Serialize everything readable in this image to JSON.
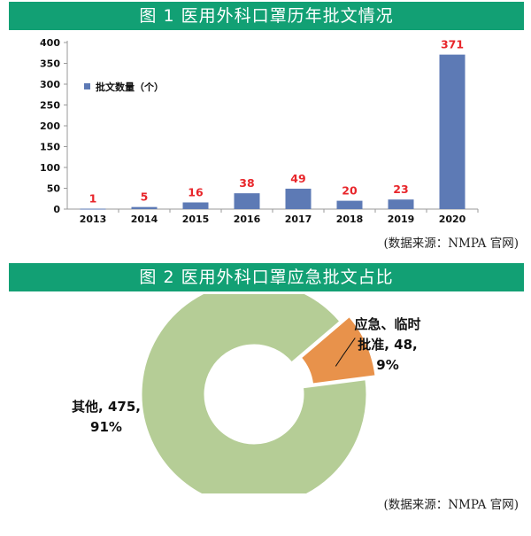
{
  "chart1": {
    "title": "图 1   医用外科口罩历年批文情况",
    "source": "(数据来源：NMPA 官网)",
    "chart_data": {
      "type": "bar",
      "title": "图 1   医用外科口罩历年批文情况",
      "categories": [
        "2013",
        "2014",
        "2015",
        "2016",
        "2017",
        "2018",
        "2019",
        "2020"
      ],
      "series": [
        {
          "name": "批文数量（个）",
          "values": [
            1,
            5,
            16,
            38,
            49,
            20,
            23,
            371
          ]
        }
      ],
      "ylim": [
        0,
        400
      ],
      "yticks": [
        0,
        50,
        100,
        150,
        200,
        250,
        300,
        350,
        400
      ],
      "xlabel": "",
      "ylabel": "",
      "grid": false,
      "legend": "inside top-left",
      "colors": {
        "bar": "#5d7ab5",
        "data_label": "#e8262b"
      }
    }
  },
  "chart2": {
    "title": "图 2   医用外科口罩应急批文占比",
    "source": "(数据来源：NMPA 官网)",
    "chart_data": {
      "type": "pie",
      "style": "donut, emergency slice exploded",
      "slices": [
        {
          "label_lines": [
            "其他, 475,",
            "91%"
          ],
          "value": 475,
          "percent": 91,
          "color": "#b5cd96"
        },
        {
          "label_lines": [
            "应急、临时",
            "批准, 48,",
            "9%"
          ],
          "value": 48,
          "percent": 9,
          "color": "#e8924b"
        }
      ]
    }
  }
}
